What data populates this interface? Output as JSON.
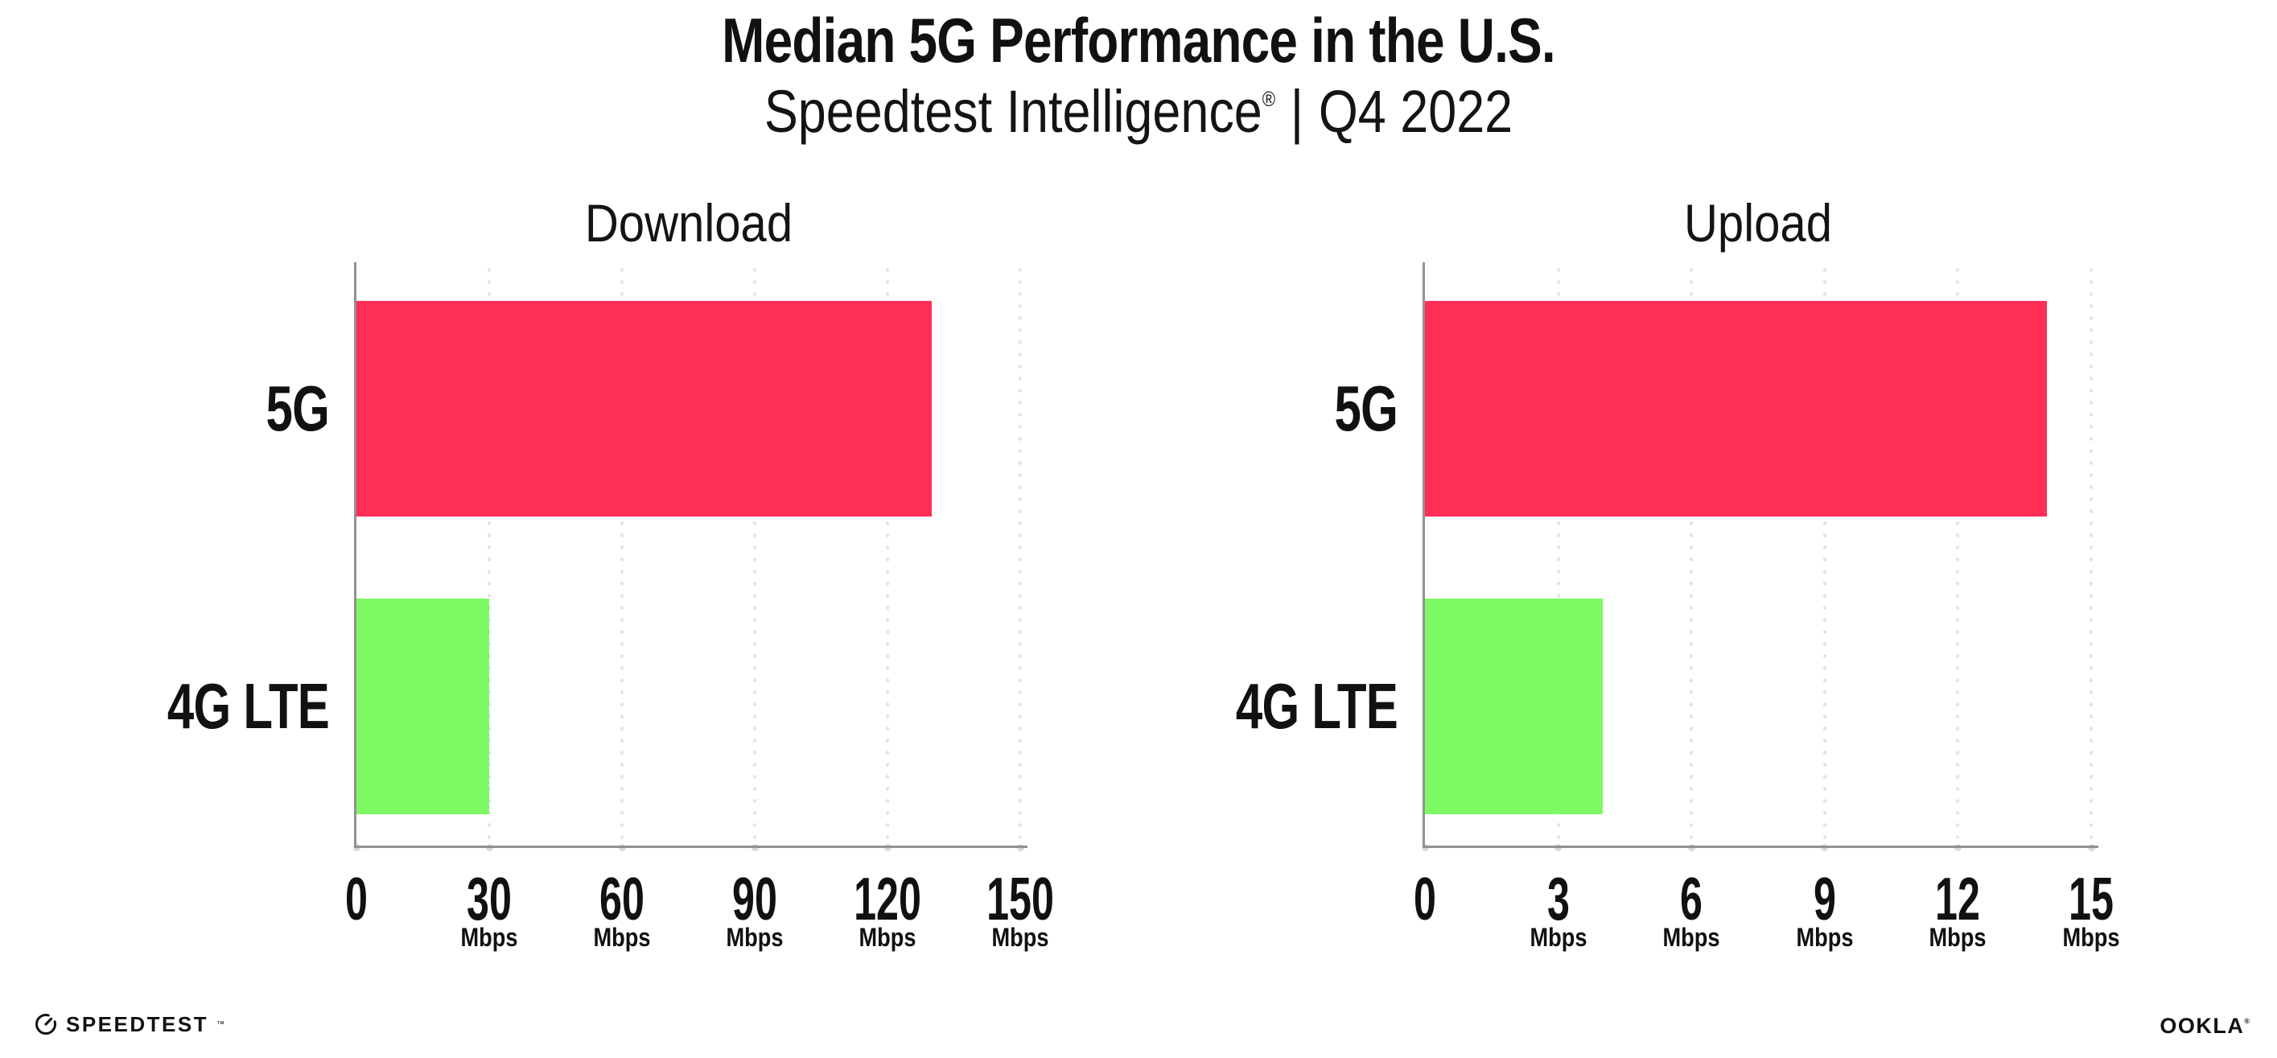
{
  "header": {
    "title": "Median 5G Performance in the U.S.",
    "subtitle": {
      "brand": "Speedtest Intelligence",
      "registered_mark": "®",
      "separator": "|",
      "period": "Q4 2022"
    }
  },
  "chart_data": [
    {
      "type": "bar",
      "orientation": "horizontal",
      "title": "Download",
      "categories": [
        "5G",
        "4G LTE"
      ],
      "values": [
        130,
        30
      ],
      "unit": "Mbps",
      "xlim": [
        0,
        150
      ],
      "xticks": [
        0,
        30,
        60,
        90,
        120,
        150
      ],
      "grid": "dotted-vertical",
      "legend": "none"
    },
    {
      "type": "bar",
      "orientation": "horizontal",
      "title": "Upload",
      "categories": [
        "5G",
        "4G LTE"
      ],
      "values": [
        14,
        4
      ],
      "unit": "Mbps",
      "xlim": [
        0,
        15
      ],
      "xticks": [
        0,
        3,
        6,
        9,
        12,
        15
      ],
      "grid": "dotted-vertical",
      "legend": "none"
    }
  ],
  "colors": {
    "bar_5g": "#FF2E56",
    "bar_4g_lte": "#7DF963",
    "axis": "#919196",
    "grid_dot": "#E2E2EC",
    "baseline_dot": "#D9D9E3",
    "text": "#111111",
    "background": "#FFFFFF"
  },
  "footer": {
    "speedtest": {
      "label": "SPEEDTEST",
      "mark": "™"
    },
    "ookla": {
      "label": "OOKLA",
      "mark": "®"
    }
  }
}
